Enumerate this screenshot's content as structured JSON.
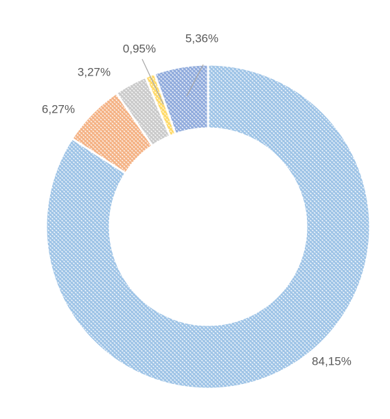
{
  "chart_data": {
    "type": "donut",
    "categories": [
      null,
      null,
      null,
      null,
      null
    ],
    "values": [
      84.15,
      6.27,
      3.27,
      0.95,
      5.36
    ],
    "value_labels": [
      "84,15%",
      "6,27%",
      "3,27%",
      "0,95%",
      "5,36%"
    ],
    "colors": [
      "#9dc3e6",
      "#f4b183",
      "#c9c9c9",
      "#ffd966",
      "#8faadc"
    ]
  }
}
